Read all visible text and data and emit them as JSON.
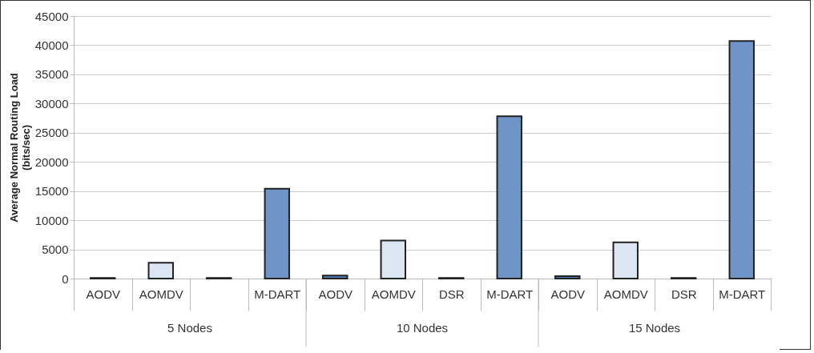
{
  "chart_data": {
    "type": "bar",
    "ylabel": "Average Normal Routing Load\n(bits/sec)",
    "categories": [
      "AODV",
      "AOMDV",
      null,
      "M-DART",
      "AODV",
      "AOMDV",
      "DSR",
      "M-DART",
      "AODV",
      "AOMDV",
      "DSR",
      "M-DART"
    ],
    "values": [
      100,
      2700,
      100,
      15400,
      500,
      6500,
      100,
      27800,
      400,
      6200,
      100,
      40700
    ],
    "colors": [
      "#4f81bd",
      "#dce6f2",
      "#a7c0de",
      "#6f94c8",
      "#4f81bd",
      "#dce6f2",
      "#a7c0de",
      "#6f94c8",
      "#4f81bd",
      "#dce6f2",
      "#a7c0de",
      "#6f94c8"
    ],
    "ylim": [
      0,
      45000
    ],
    "yticks": [
      0,
      5000,
      10000,
      15000,
      20000,
      25000,
      30000,
      35000,
      40000,
      45000
    ],
    "grid": "y",
    "annotations": [
      "5 Nodes",
      "10 Nodes",
      "15 Nodes"
    ]
  }
}
